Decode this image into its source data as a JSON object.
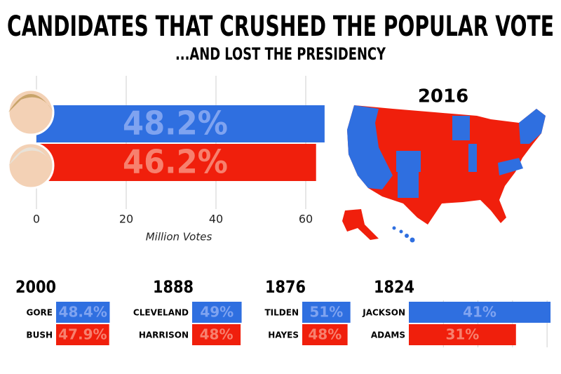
{
  "title": "CANDIDATES THAT CRUSHED THE POPULAR VOTE",
  "subtitle": "...AND LOST THE PRESIDENCY",
  "map_title": "2016",
  "chart_data": [
    {
      "type": "bar",
      "categories": [
        null,
        null
      ],
      "values": [
        64.2,
        62.3
      ],
      "shares": [
        "48.2%",
        "46.2%"
      ],
      "colors": [
        "#2f6fe0",
        "#f01f0c"
      ],
      "xlim": [
        0,
        65
      ],
      "xticks": [
        0,
        20,
        40,
        60
      ],
      "xlabel": "Million Votes",
      "grid": true
    },
    {
      "type": "bar",
      "title": "2000",
      "categories": [
        "GORE",
        "BUSH"
      ],
      "values": [
        48.4,
        47.9
      ],
      "value_labels": [
        "48.4%",
        "47.9%"
      ],
      "colors": [
        "#2f6fe0",
        "#f01f0c"
      ],
      "xlim": [
        0,
        50
      ]
    },
    {
      "type": "bar",
      "title": "1888",
      "categories": [
        "CLEVELAND",
        "HARRISON"
      ],
      "values": [
        49,
        48
      ],
      "value_labels": [
        "49%",
        "48%"
      ],
      "colors": [
        "#2f6fe0",
        "#f01f0c"
      ],
      "xlim": [
        0,
        50
      ]
    },
    {
      "type": "bar",
      "title": "1876",
      "categories": [
        "TILDEN",
        "HAYES"
      ],
      "values": [
        51,
        48
      ],
      "value_labels": [
        "51%",
        "48%"
      ],
      "colors": [
        "#2f6fe0",
        "#f01f0c"
      ],
      "xlim": [
        0,
        52
      ]
    },
    {
      "type": "bar",
      "title": "1824",
      "categories": [
        "JACKSON",
        "ADAMS"
      ],
      "values": [
        41,
        31
      ],
      "value_labels": [
        "41%",
        "31%"
      ],
      "colors": [
        "#2f6fe0",
        "#f01f0c"
      ],
      "xlim": [
        0,
        42
      ]
    }
  ]
}
